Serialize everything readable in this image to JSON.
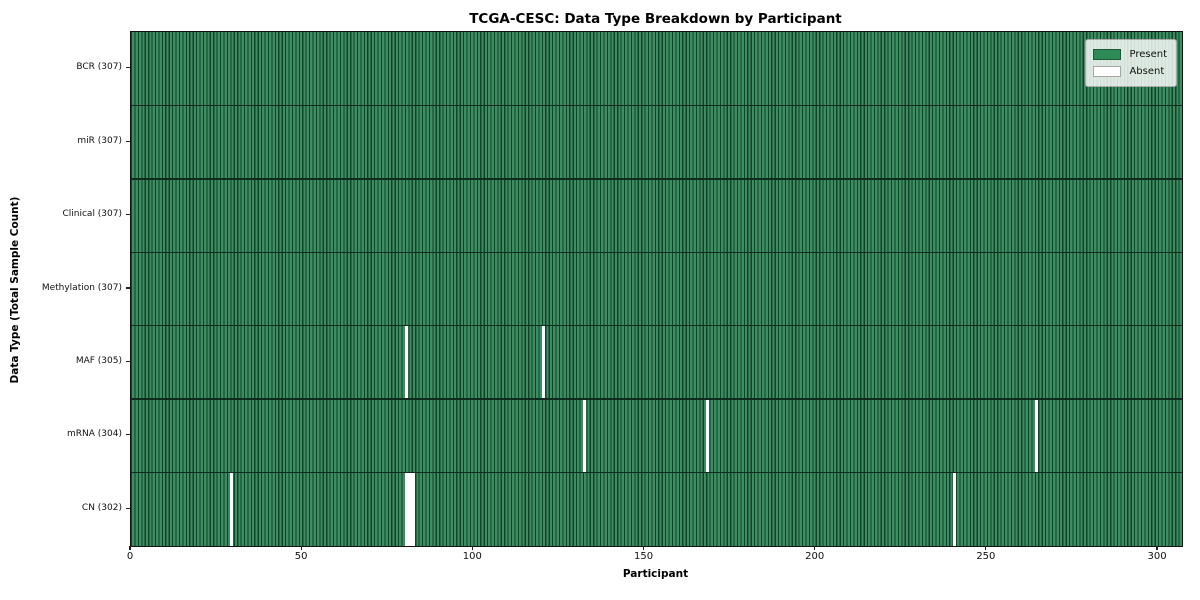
{
  "chart_data": {
    "type": "heatmap",
    "title": "TCGA-CESC: Data Type Breakdown by Participant",
    "xlabel": "Participant",
    "ylabel": "Data Type (Total Sample Count)",
    "x_ticks": [
      0,
      50,
      100,
      150,
      200,
      250,
      300
    ],
    "x_range": [
      0,
      307
    ],
    "n_participants": 307,
    "grid": false,
    "legend_position": "upper right",
    "rows": [
      {
        "name": "BCR",
        "label": "BCR (307)",
        "present_count": 307,
        "absent_participants": []
      },
      {
        "name": "miR",
        "label": "miR (307)",
        "present_count": 307,
        "absent_participants": []
      },
      {
        "name": "Clinical",
        "label": "Clinical (307)",
        "present_count": 307,
        "absent_participants": []
      },
      {
        "name": "Methylation",
        "label": "Methylation (307)",
        "present_count": 307,
        "absent_participants": []
      },
      {
        "name": "MAF",
        "label": "MAF (305)",
        "present_count": 305,
        "absent_participants": [
          80,
          120
        ]
      },
      {
        "name": "mRNA",
        "label": "mRNA (304)",
        "present_count": 304,
        "absent_participants": [
          132,
          168,
          264
        ]
      },
      {
        "name": "CN",
        "label": "CN (302)",
        "present_count": 302,
        "absent_participants": [
          29,
          80,
          81,
          82,
          240
        ]
      }
    ],
    "legend": [
      {
        "label": "Present",
        "color": "#2e8b57"
      },
      {
        "label": "Absent",
        "color": "#ffffff"
      }
    ],
    "colors": {
      "present": "#2e8b57",
      "present_stripe_light": "#3a8e60",
      "cell_edge": "#16402b",
      "absent": "#ffffff",
      "row_separator": "#0e2b1d",
      "spine": "#121212"
    }
  }
}
